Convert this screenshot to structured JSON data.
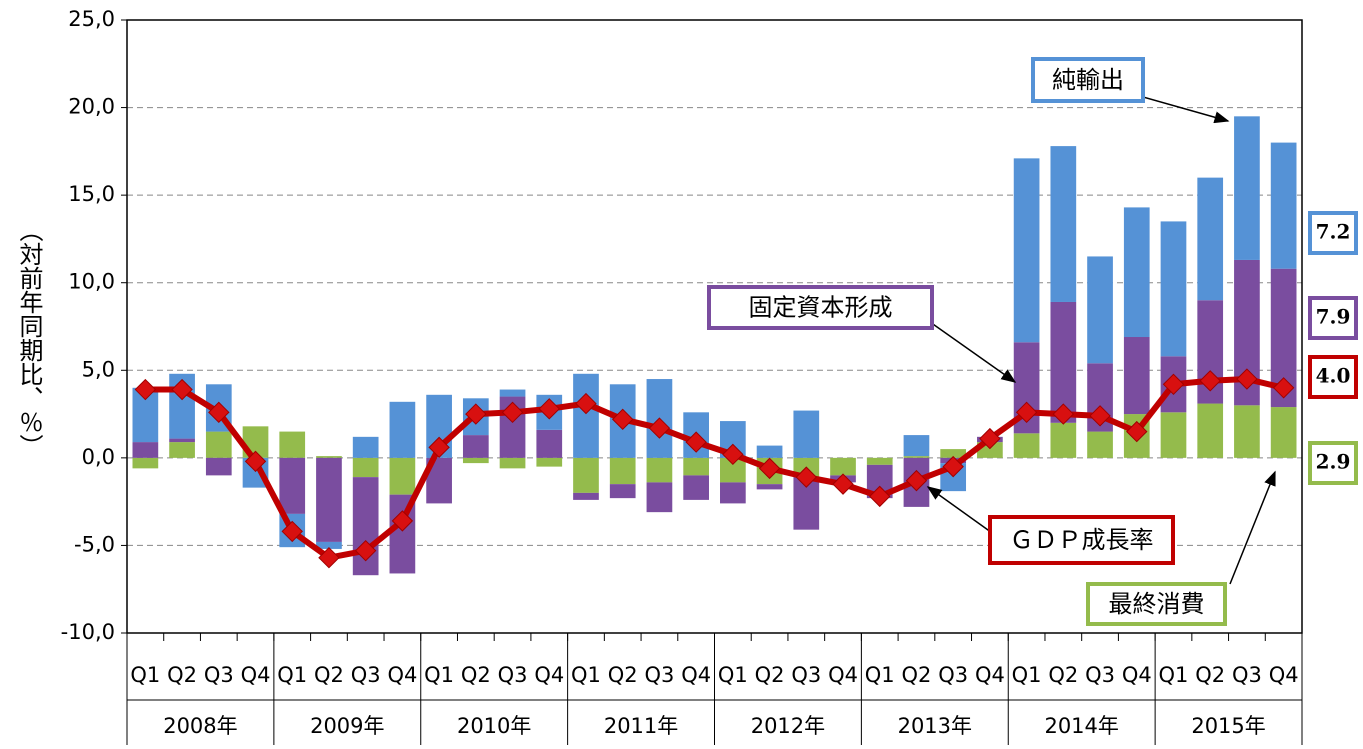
{
  "chart_data": {
    "type": "bar-line",
    "y_label": "（対前年同期比、％）",
    "categories": [
      "Q1",
      "Q2",
      "Q3",
      "Q4",
      "Q1",
      "Q2",
      "Q3",
      "Q4",
      "Q1",
      "Q2",
      "Q3",
      "Q4",
      "Q1",
      "Q2",
      "Q3",
      "Q4",
      "Q1",
      "Q2",
      "Q3",
      "Q4",
      "Q1",
      "Q2",
      "Q3",
      "Q4",
      "Q1",
      "Q2",
      "Q3",
      "Q4",
      "Q1",
      "Q2",
      "Q3",
      "Q4"
    ],
    "years": [
      "2008年",
      "2009年",
      "2010年",
      "2011年",
      "2012年",
      "2013年",
      "2014年",
      "2015年"
    ],
    "ylim": [
      -10,
      25
    ],
    "yticks": [
      {
        "value": -10,
        "label": "-10,0"
      },
      {
        "value": -5,
        "label": "-5,0"
      },
      {
        "value": 0,
        "label": "0,0"
      },
      {
        "value": 5,
        "label": "5,0"
      },
      {
        "value": 10,
        "label": "10,0"
      },
      {
        "value": 15,
        "label": "15,0"
      },
      {
        "value": 20,
        "label": "20,0"
      },
      {
        "value": 25,
        "label": "25,0"
      }
    ],
    "grid": true,
    "series": [
      {
        "name": "最終消費",
        "kind": "bar",
        "color": "#94bb4c",
        "end_label": "2.9",
        "values": [
          -0.6,
          0.9,
          1.5,
          1.8,
          1.5,
          0.1,
          -1.1,
          -2.1,
          0,
          -0.3,
          -0.6,
          -0.5,
          -2.0,
          -1.5,
          -1.4,
          -1.0,
          -1.4,
          -1.5,
          -1.1,
          -1.0,
          -0.4,
          0.1,
          0.5,
          0.9,
          1.4,
          2.0,
          1.5,
          2.5,
          2.6,
          3.1,
          3.0,
          2.9
        ]
      },
      {
        "name": "固定資本形成",
        "kind": "bar",
        "color": "#7a4d9f",
        "end_label": "7.9",
        "values": [
          0.9,
          0.2,
          -1.0,
          0,
          -3.2,
          -4.8,
          -5.6,
          -4.5,
          -2.6,
          1.3,
          3.5,
          1.6,
          -0.4,
          -0.8,
          -1.7,
          -1.4,
          -1.2,
          -0.3,
          -3.0,
          -0.4,
          -1.9,
          -2.8,
          -0.3,
          0.3,
          5.2,
          6.9,
          3.9,
          4.4,
          3.2,
          5.9,
          8.3,
          7.9
        ]
      },
      {
        "name": "純輸出",
        "kind": "bar",
        "color": "#5592d6",
        "end_label": "7.2",
        "values": [
          3.1,
          3.7,
          2.7,
          -1.7,
          -1.9,
          -0.4,
          1.2,
          3.2,
          3.6,
          2.1,
          0.4,
          2.0,
          4.8,
          4.2,
          4.5,
          2.6,
          2.1,
          0.7,
          2.7,
          0,
          0,
          1.2,
          -1.6,
          0,
          10.5,
          8.9,
          6.1,
          7.4,
          7.7,
          7.0,
          8.2,
          7.2
        ]
      },
      {
        "name": "ＧＤＰ成長率",
        "kind": "line",
        "color": "#c00000",
        "end_label": "4.0",
        "values": [
          3.9,
          3.9,
          2.6,
          -0.2,
          -4.2,
          -5.7,
          -5.3,
          -3.6,
          0.6,
          2.5,
          2.6,
          2.8,
          3.1,
          2.2,
          1.7,
          0.9,
          0.2,
          -0.6,
          -1.1,
          -1.5,
          -2.2,
          -1.3,
          -0.5,
          1.1,
          2.6,
          2.5,
          2.4,
          1.5,
          4.2,
          4.4,
          4.5,
          4.0
        ]
      }
    ]
  }
}
